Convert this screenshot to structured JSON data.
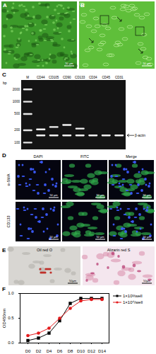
{
  "panel_labels": [
    "A",
    "B",
    "C",
    "D",
    "E",
    "F"
  ],
  "micrographs": {
    "A": {
      "scale_bar": "50 μm"
    },
    "B": {
      "scale_bar": "50 μm"
    }
  },
  "gel": {
    "axis_label": "bp",
    "marker_lane": "M",
    "ladder": [
      2000,
      1000,
      500,
      200,
      100
    ],
    "lanes": [
      {
        "name": "CD44",
        "bands": [
          210
        ]
      },
      {
        "name": "CD105",
        "bands": [
          240
        ]
      },
      {
        "name": "CD90",
        "bands": [
          270
        ]
      },
      {
        "name": "CD133",
        "bands": [
          220
        ]
      },
      {
        "name": "CD34",
        "bands": []
      },
      {
        "name": "CD45",
        "bands": []
      },
      {
        "name": "CD31",
        "bands": []
      }
    ],
    "reference": {
      "name": "β-actin",
      "size": 150
    }
  },
  "immunofluorescence": {
    "columns": [
      "DAPI",
      "FITC",
      "Merge"
    ],
    "rows": [
      "α-SMA",
      "CD133"
    ],
    "scale_bar": "50 μm"
  },
  "staining": {
    "panels": [
      "Oil red O",
      "Alizarin red S"
    ],
    "scale_bar": "50μm"
  },
  "chart_data": {
    "type": "line",
    "y_label": "OD450nm",
    "categories": [
      "D0",
      "D2",
      "D4",
      "D6",
      "D8",
      "D10",
      "D12",
      "D14"
    ],
    "series": [
      {
        "name": "1×10³/well",
        "color": "#000000",
        "marker": "square",
        "values": [
          0.05,
          0.1,
          0.2,
          0.45,
          0.8,
          0.9,
          0.9,
          0.9
        ]
      },
      {
        "name": "1×10⁴/well",
        "color": "#e41a1c",
        "marker": "circle",
        "values": [
          0.15,
          0.2,
          0.3,
          0.5,
          0.7,
          0.85,
          0.88,
          0.88
        ]
      }
    ],
    "ylim": [
      0,
      1.0
    ],
    "yticks": [
      {
        "value": 0,
        "label": "0.0"
      },
      {
        "value": 0.5,
        "label": "0.5"
      },
      {
        "value": 1.0,
        "label": "1.0"
      }
    ],
    "legend": "right"
  }
}
